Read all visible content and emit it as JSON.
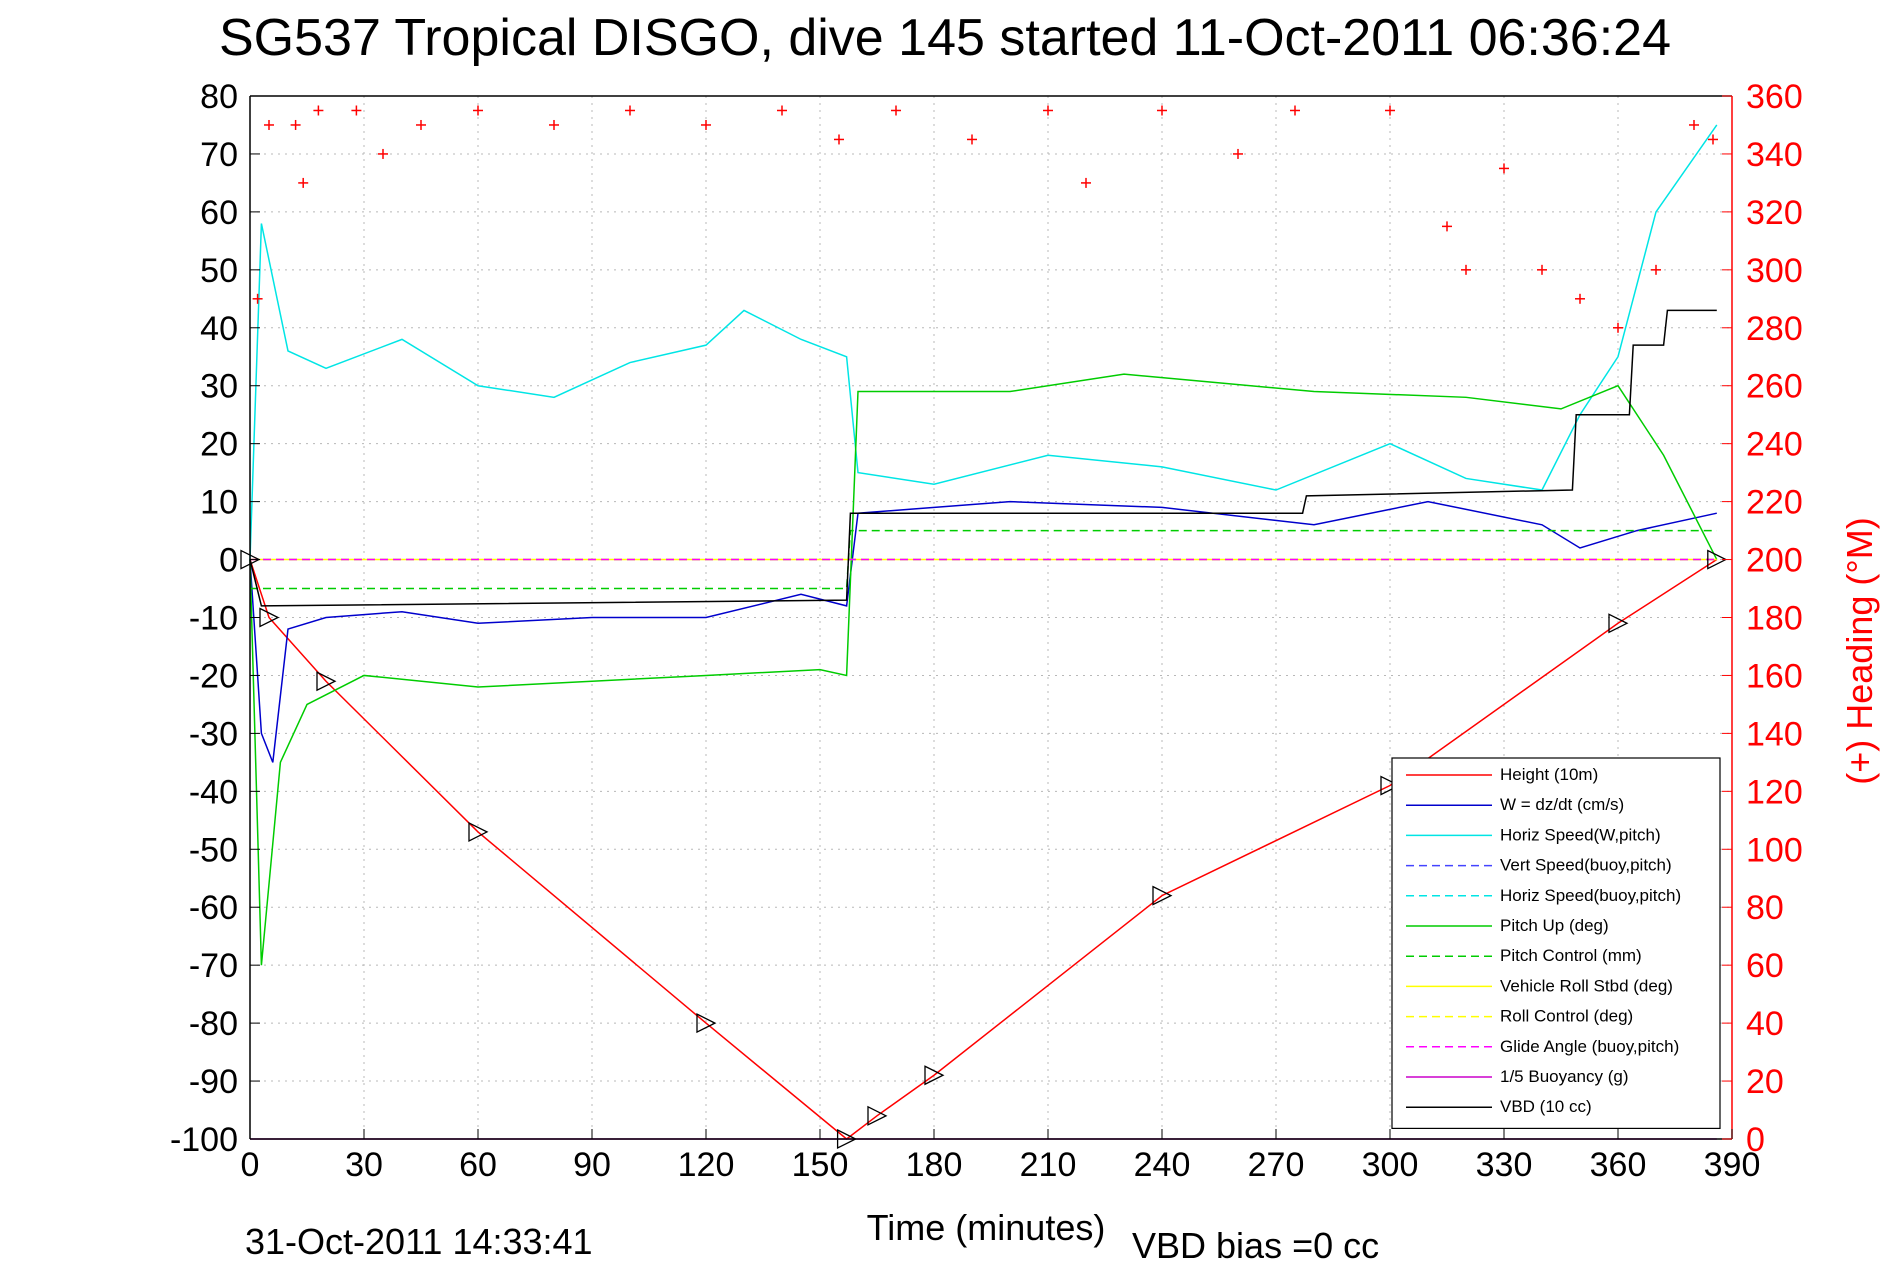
{
  "chart_data": {
    "type": "line",
    "title": "SG537 Tropical DISGO, dive 145 started 11-Oct-2011 06:36:24",
    "xlabel": "Time (minutes)",
    "ylabel_right": "(+) Heading (°M)",
    "xlim": [
      0,
      390
    ],
    "ylim": [
      -100,
      80
    ],
    "ylim_right": [
      0,
      360
    ],
    "xticks": [
      "0",
      "30",
      "60",
      "90",
      "120",
      "150",
      "180",
      "210",
      "240",
      "270",
      "300",
      "330",
      "360",
      "390"
    ],
    "yticks": [
      "80",
      "70",
      "60",
      "50",
      "40",
      "30",
      "20",
      "10",
      "0",
      "-10",
      "-20",
      "-30",
      "-40",
      "-50",
      "-60",
      "-70",
      "-80",
      "-90",
      "-100"
    ],
    "yticks_right": [
      "360",
      "340",
      "320",
      "300",
      "280",
      "260",
      "240",
      "220",
      "200",
      "180",
      "160",
      "140",
      "120",
      "100",
      "80",
      "60",
      "40",
      "20",
      "0"
    ],
    "grid": true,
    "legend_position": "bottom-right",
    "footer_date": "31-Oct-2011 14:33:41",
    "footer_note": "VBD bias =0 cc",
    "series": [
      {
        "name": "Height (10m)",
        "color": "#ff0000",
        "style": "solid",
        "x": [
          0,
          5,
          20,
          60,
          120,
          157,
          165,
          180,
          240,
          300,
          360,
          386
        ],
        "y": [
          0,
          -10,
          -21,
          -47,
          -80,
          -100,
          -96,
          -89,
          -58,
          -39,
          -11,
          0
        ]
      },
      {
        "name": "W = dz/dt (cm/s)",
        "color": "#0000cc",
        "style": "solid",
        "x": [
          0,
          3,
          6,
          10,
          20,
          40,
          60,
          90,
          120,
          145,
          157,
          160,
          200,
          240,
          280,
          310,
          340,
          350,
          365,
          386
        ],
        "y": [
          0,
          -30,
          -35,
          -12,
          -10,
          -9,
          -11,
          -10,
          -10,
          -6,
          -8,
          8,
          10,
          9,
          6,
          10,
          6,
          2,
          5,
          8
        ]
      },
      {
        "name": "Horiz Speed(W,pitch)",
        "color": "#00e5e5",
        "style": "solid",
        "x": [
          0,
          3,
          10,
          20,
          40,
          60,
          80,
          100,
          120,
          130,
          145,
          157,
          160,
          180,
          210,
          240,
          270,
          300,
          320,
          340,
          350,
          360,
          370,
          386
        ],
        "y": [
          0,
          58,
          36,
          33,
          38,
          30,
          28,
          34,
          37,
          43,
          38,
          35,
          15,
          13,
          18,
          16,
          12,
          20,
          14,
          12,
          25,
          35,
          60,
          75
        ]
      },
      {
        "name": "Vert Speed(buoy,pitch)",
        "color": "#4444ff",
        "style": "dashed",
        "x": [
          0,
          386
        ],
        "y": [
          0,
          0
        ]
      },
      {
        "name": "Horiz Speed(buoy,pitch)",
        "color": "#00e5e5",
        "style": "dashed",
        "x": [
          0,
          386
        ],
        "y": [
          0,
          0
        ]
      },
      {
        "name": "Pitch Up (deg)",
        "color": "#00cc00",
        "style": "solid",
        "x": [
          0,
          3,
          8,
          15,
          30,
          60,
          90,
          120,
          150,
          157,
          160,
          200,
          230,
          280,
          320,
          345,
          360,
          372,
          386
        ],
        "y": [
          0,
          -70,
          -35,
          -25,
          -20,
          -22,
          -21,
          -20,
          -19,
          -20,
          29,
          29,
          32,
          29,
          28,
          26,
          30,
          18,
          0
        ]
      },
      {
        "name": "Pitch Control (mm)",
        "color": "#00cc00",
        "style": "dashed",
        "x": [
          0,
          157,
          158,
          280,
          386
        ],
        "y": [
          -5,
          -5,
          5,
          5,
          5
        ]
      },
      {
        "name": "Vehicle Roll Stbd (deg)",
        "color": "#ffff00",
        "style": "solid",
        "x": [
          0,
          386
        ],
        "y": [
          0,
          0
        ]
      },
      {
        "name": "Roll Control (deg)",
        "color": "#ffff00",
        "style": "dashed",
        "x": [
          0,
          386
        ],
        "y": [
          0,
          0
        ]
      },
      {
        "name": "Glide Angle (buoy,pitch)",
        "color": "#ff00ff",
        "style": "dashed",
        "x": [
          0,
          386
        ],
        "y": [
          0,
          0
        ]
      },
      {
        "name": "1/5 Buoyancy (g)",
        "color": "#cc00cc",
        "style": "solid",
        "x": [
          0,
          386
        ],
        "y": [
          -100,
          -100
        ]
      },
      {
        "name": "VBD (10 cc)",
        "color": "#000000",
        "style": "solid",
        "x": [
          0,
          3,
          157,
          158,
          277,
          278,
          348,
          349,
          363,
          364,
          372,
          373,
          386
        ],
        "y": [
          0,
          -8,
          -7,
          8,
          8,
          11,
          12,
          25,
          25,
          37,
          37,
          43,
          43
        ]
      }
    ],
    "heading_series": {
      "name": "(+) Heading (°M)",
      "color": "#ff0000",
      "marker": "+",
      "axis": "right",
      "x": [
        2,
        5,
        12,
        14,
        18,
        28,
        35,
        45,
        60,
        80,
        100,
        120,
        140,
        155,
        170,
        190,
        210,
        220,
        240,
        260,
        275,
        300,
        315,
        320,
        330,
        340,
        350,
        360,
        370,
        380,
        385
      ],
      "y": [
        290,
        350,
        350,
        330,
        355,
        355,
        340,
        350,
        355,
        350,
        355,
        350,
        355,
        345,
        355,
        345,
        355,
        330,
        355,
        340,
        355,
        355,
        315,
        300,
        335,
        300,
        290,
        280,
        300,
        350,
        345
      ]
    }
  }
}
